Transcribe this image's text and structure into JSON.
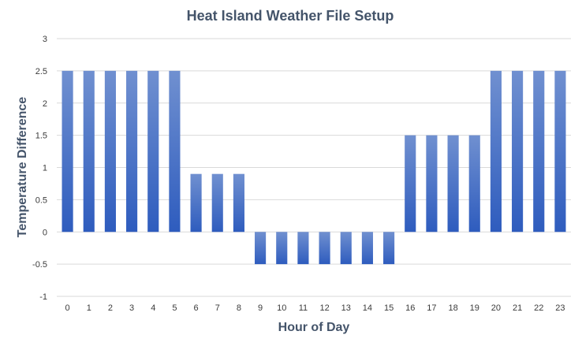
{
  "chart_data": {
    "type": "bar",
    "title": "Heat Island Weather File Setup",
    "xlabel": "Hour of Day",
    "ylabel": "Temperature Difference",
    "categories": [
      "0",
      "1",
      "2",
      "3",
      "4",
      "5",
      "6",
      "7",
      "8",
      "9",
      "10",
      "11",
      "12",
      "13",
      "14",
      "15",
      "16",
      "17",
      "18",
      "19",
      "20",
      "21",
      "22",
      "23"
    ],
    "values": [
      2.5,
      2.5,
      2.5,
      2.5,
      2.5,
      2.5,
      0.9,
      0.9,
      0.9,
      -0.5,
      -0.5,
      -0.5,
      -0.5,
      -0.5,
      -0.5,
      -0.5,
      1.5,
      1.5,
      1.5,
      1.5,
      2.5,
      2.5,
      2.5,
      2.5
    ],
    "ylim": [
      -1,
      3
    ],
    "yticks": [
      "-1",
      "-0.5",
      "0",
      "0.5",
      "1",
      "1.5",
      "2",
      "2.5",
      "3"
    ],
    "grid": true,
    "legend": "none",
    "colors": {
      "bar_top": "#7090d0",
      "bar_bottom": "#2e5cbe",
      "grid": "#d9d9d9"
    }
  }
}
